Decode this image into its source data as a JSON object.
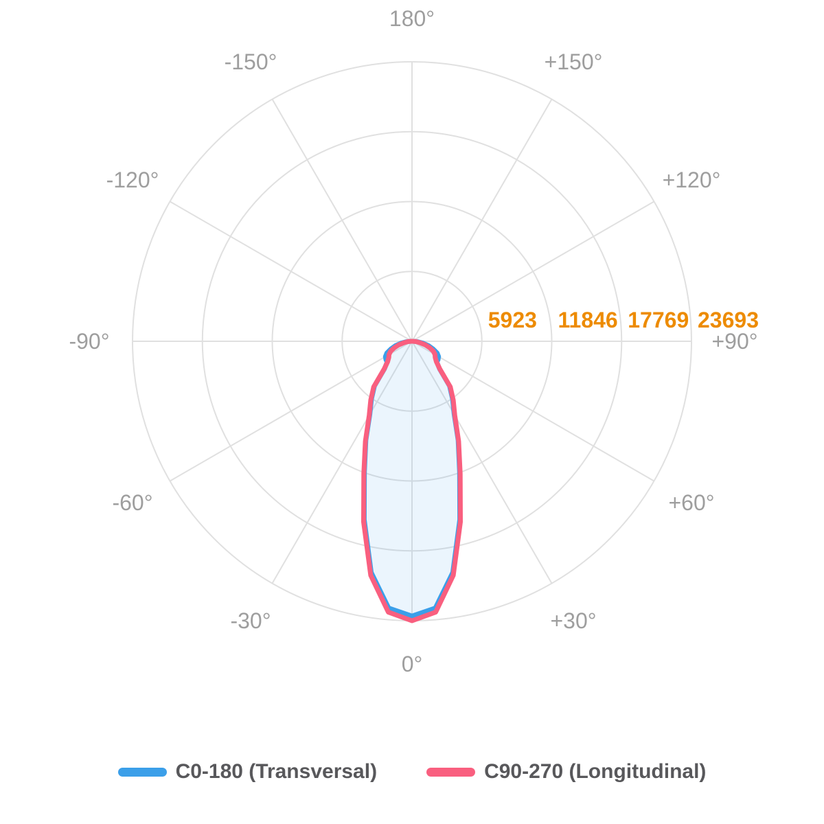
{
  "chart_data": {
    "type": "line",
    "subtype": "polar-photometric-distribution",
    "title": "",
    "layout": {
      "zero_angle_position": "bottom",
      "angle_label_step_deg": 30,
      "rings": 4,
      "grid_shape": "circular",
      "legend_position": "bottom"
    },
    "angle_labels": [
      {
        "deg": 0,
        "label": "0°"
      },
      {
        "deg": 30,
        "label": "+30°"
      },
      {
        "deg": 60,
        "label": "+60°"
      },
      {
        "deg": 90,
        "label": "+90°"
      },
      {
        "deg": 120,
        "label": "+120°"
      },
      {
        "deg": 150,
        "label": "+150°"
      },
      {
        "deg": 180,
        "label": "180°"
      },
      {
        "deg": -150,
        "label": "-150°"
      },
      {
        "deg": -120,
        "label": "-120°"
      },
      {
        "deg": -90,
        "label": "-90°"
      },
      {
        "deg": -60,
        "label": "-60°"
      },
      {
        "deg": -30,
        "label": "-30°"
      }
    ],
    "radial_ticks": [
      "5923",
      "11846",
      "17769",
      "23693"
    ],
    "radial_max": 23693,
    "series": [
      {
        "name": "C0-180 (Transversal)",
        "color": "#3B9FE9",
        "fill": "rgba(59,159,233,0.10)",
        "symmetric_mirror": true,
        "angles_deg": [
          0,
          5,
          10,
          15,
          20,
          25,
          30,
          35,
          40,
          45,
          50,
          55,
          60,
          65,
          70,
          75,
          80,
          85,
          90
        ],
        "values": [
          23300,
          22700,
          19900,
          15650,
          11800,
          9250,
          7150,
          6000,
          4950,
          3300,
          2750,
          2700,
          2600,
          2350,
          1900,
          1450,
          950,
          500,
          120
        ]
      },
      {
        "name": "C90-270 (Longitudinal)",
        "color": "#F95F7F",
        "fill": "none",
        "symmetric_mirror": true,
        "angles_deg": [
          0,
          5,
          10,
          15,
          20,
          25,
          30,
          35,
          40,
          45,
          50,
          55,
          60,
          65,
          70,
          75,
          80,
          85,
          90
        ],
        "values": [
          23693,
          23050,
          20150,
          15850,
          11950,
          9350,
          7250,
          6100,
          5050,
          3350,
          2700,
          2400,
          2250,
          2000,
          1600,
          1150,
          700,
          350,
          60
        ]
      }
    ],
    "colors": {
      "grid": "#E0E0E0",
      "angle_label": "#9E9E9E",
      "tick_label": "#ED8B00"
    }
  }
}
